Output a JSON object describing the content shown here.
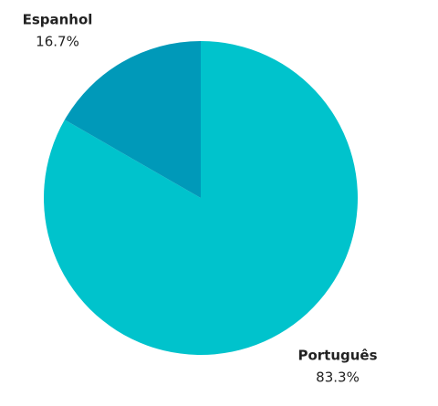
{
  "chart_data": {
    "type": "pie",
    "categories": [
      "Português",
      "Espanhol"
    ],
    "values": [
      83.3,
      16.7
    ],
    "value_labels": [
      "83.3%",
      "16.7%"
    ],
    "colors": [
      "#00c3cc",
      "#0099b9"
    ]
  }
}
